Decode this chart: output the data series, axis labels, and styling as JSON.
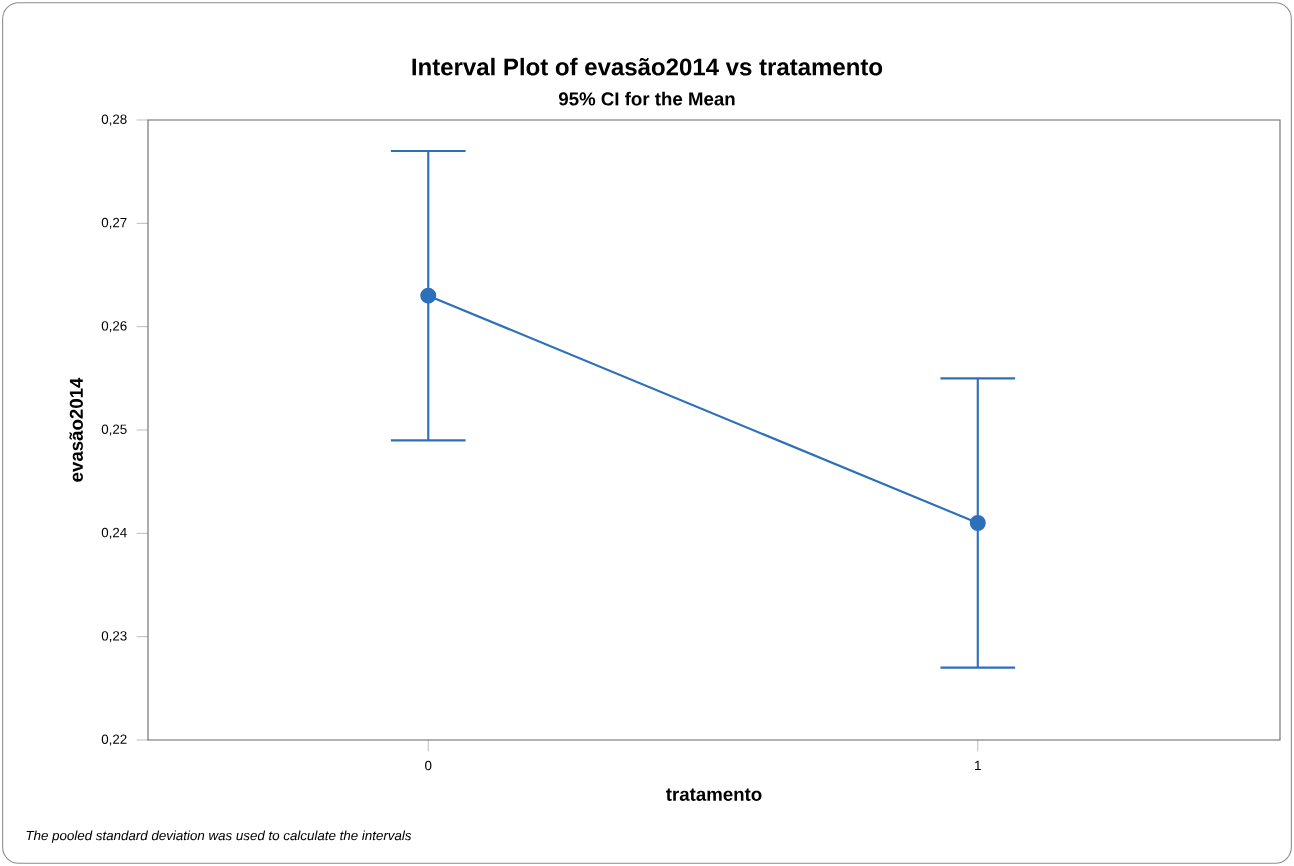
{
  "chart_data": {
    "type": "line",
    "title": "Interval Plot of evasão2014 vs tratamento",
    "subtitle": "95% CI for the Mean",
    "xlabel": "tratamento",
    "ylabel": "evasão2014",
    "categories": [
      "0",
      "1"
    ],
    "series": [
      {
        "color": "#2e6fba",
        "values": [
          0.263,
          0.241
        ],
        "errors": [
          [
            0.249,
            0.277
          ],
          [
            0.227,
            0.255
          ]
        ]
      }
    ],
    "ylim": [
      0.22,
      0.28
    ],
    "yticks": [
      {
        "value": 0.22,
        "label": "0,22"
      },
      {
        "value": 0.23,
        "label": "0,23"
      },
      {
        "value": 0.24,
        "label": "0,24"
      },
      {
        "value": 0.25,
        "label": "0,25"
      },
      {
        "value": 0.26,
        "label": "0,26"
      },
      {
        "value": 0.27,
        "label": "0,27"
      },
      {
        "value": 0.28,
        "label": "0,28"
      }
    ],
    "marker": "circle",
    "line_style": "solid",
    "grid": false,
    "annotations": [
      "The pooled standard deviation was used to calculate the intervals"
    ]
  }
}
